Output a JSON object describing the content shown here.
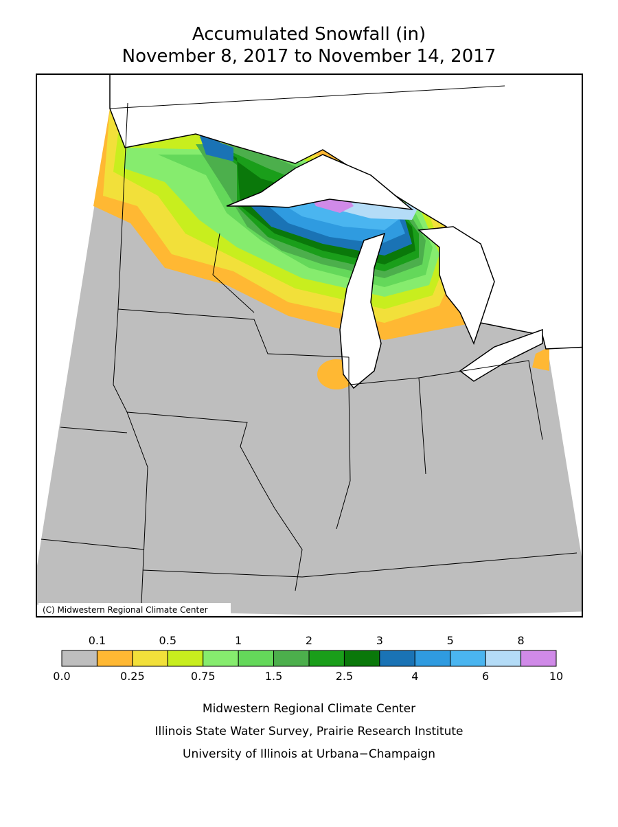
{
  "title": [
    "Accumulated Snowfall (in)",
    "November 8, 2017 to November 14, 2017"
  ],
  "map": {
    "copyright": "(C) Midwestern Regional Climate Center"
  },
  "legend": {
    "boundaries": [
      "0.0",
      "0.1",
      "0.25",
      "0.5",
      "0.75",
      "1",
      "1.5",
      "2",
      "2.5",
      "3",
      "4",
      "5",
      "6",
      "8",
      "10"
    ],
    "colors": [
      "#bebebe",
      "#ffb833",
      "#f2e03a",
      "#c8ee1e",
      "#86ec6e",
      "#64d85a",
      "#4caf4c",
      "#1a9e1a",
      "#0a780a",
      "#1a73b5",
      "#2f9be0",
      "#4ab5f0",
      "#b4dcf7",
      "#d08ae8"
    ]
  },
  "footer": [
    "Midwestern Regional Climate Center",
    "Illinois State Water Survey, Prairie Research Institute",
    "University of Illinois at Urbana−Champaign"
  ]
}
